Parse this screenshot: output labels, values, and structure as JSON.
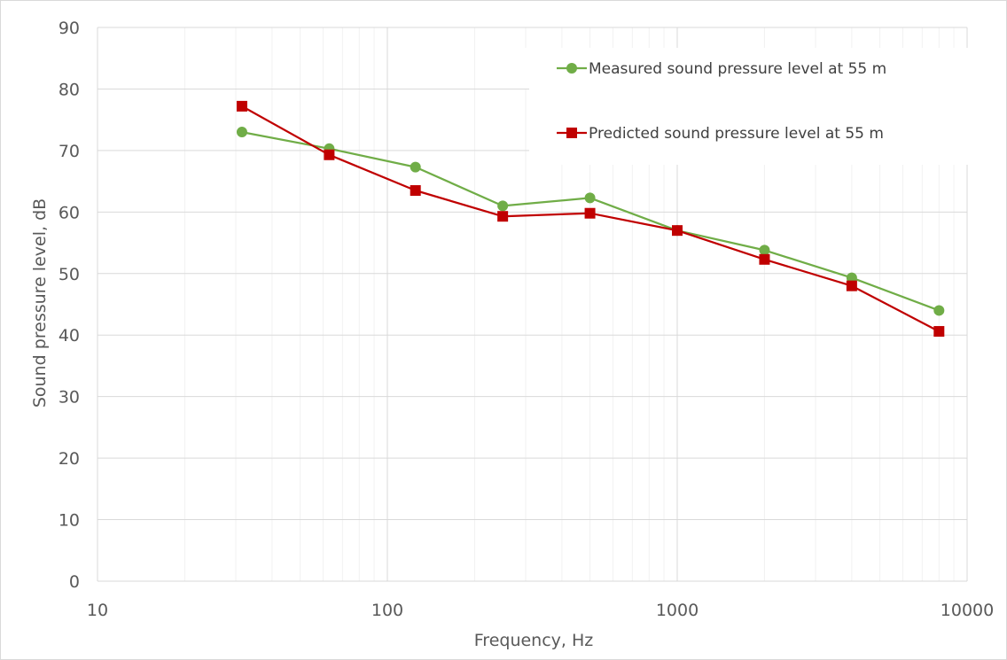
{
  "chart_data": {
    "type": "line",
    "xscale": "log",
    "xlabel": "Frequency, Hz",
    "ylabel": "Sound pressure level, dB",
    "xlim": [
      10,
      10000
    ],
    "ylim": [
      0,
      90
    ],
    "xticks": [
      "10",
      "100",
      "1000",
      "10000"
    ],
    "yticks": [
      "0",
      "10",
      "20",
      "30",
      "40",
      "50",
      "60",
      "70",
      "80",
      "90"
    ],
    "grid": true,
    "legend_position": "top-right",
    "x": [
      31.5,
      63,
      125,
      250,
      500,
      1000,
      2000,
      4000,
      8000
    ],
    "series": [
      {
        "name": "Measured sound pressure level at 55 m",
        "color": "#70ad47",
        "marker": "circle",
        "values": [
          73.0,
          70.3,
          67.3,
          61.0,
          62.3,
          57.0,
          53.8,
          49.3,
          44.0
        ]
      },
      {
        "name": "Predicted sound pressure level at 55 m",
        "color": "#c00000",
        "marker": "square",
        "values": [
          77.2,
          69.3,
          63.5,
          59.3,
          59.8,
          57.0,
          52.3,
          48.0,
          40.6
        ]
      }
    ]
  }
}
